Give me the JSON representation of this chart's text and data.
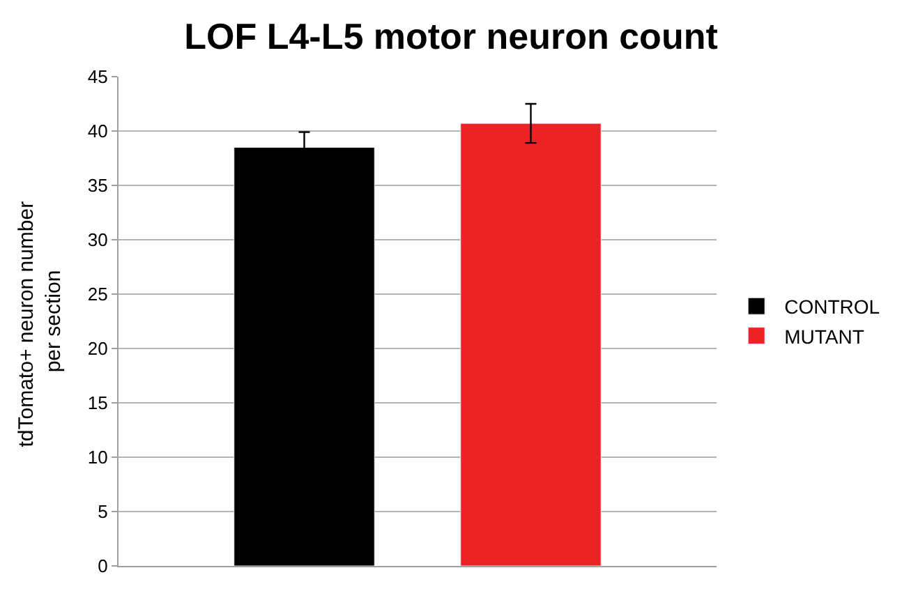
{
  "chart_data": {
    "type": "bar",
    "title": "LOF L4-L5 motor neuron count",
    "ylabel": "tdTomato+ neuron number  per section",
    "categories": [
      null,
      null
    ],
    "series": [
      {
        "name": "CONTROL",
        "color": "#000000",
        "values": [
          38.5,
          null
        ],
        "errors": [
          1.4,
          null
        ]
      },
      {
        "name": "MUTANT",
        "color": "#ed2224",
        "values": [
          null,
          40.7
        ],
        "errors": [
          null,
          1.8
        ]
      }
    ],
    "ylim": [
      0,
      45
    ],
    "yticks": [
      0,
      5,
      10,
      15,
      20,
      25,
      30,
      35,
      40,
      45
    ],
    "grid": "y",
    "legend": "right",
    "tick_labels": "y"
  }
}
